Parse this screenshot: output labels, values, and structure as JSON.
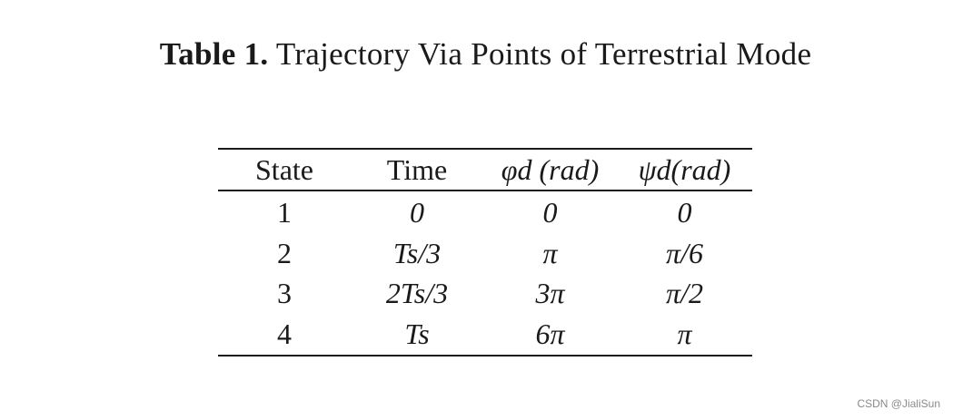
{
  "caption": {
    "label": "Table 1.",
    "text": "Trajectory Via Points of Terrestrial Mode"
  },
  "table": {
    "headers": [
      "State",
      "Time",
      "φd (rad)",
      "ψd(rad)"
    ],
    "rows": [
      [
        "1",
        "0",
        "0",
        "0"
      ],
      [
        "2",
        "Ts/3",
        "π",
        "π/6"
      ],
      [
        "3",
        "2Ts/3",
        "3π",
        "π/2"
      ],
      [
        "4",
        "Ts",
        "6π",
        "π"
      ]
    ]
  },
  "watermark": "CSDN @JialiSun"
}
